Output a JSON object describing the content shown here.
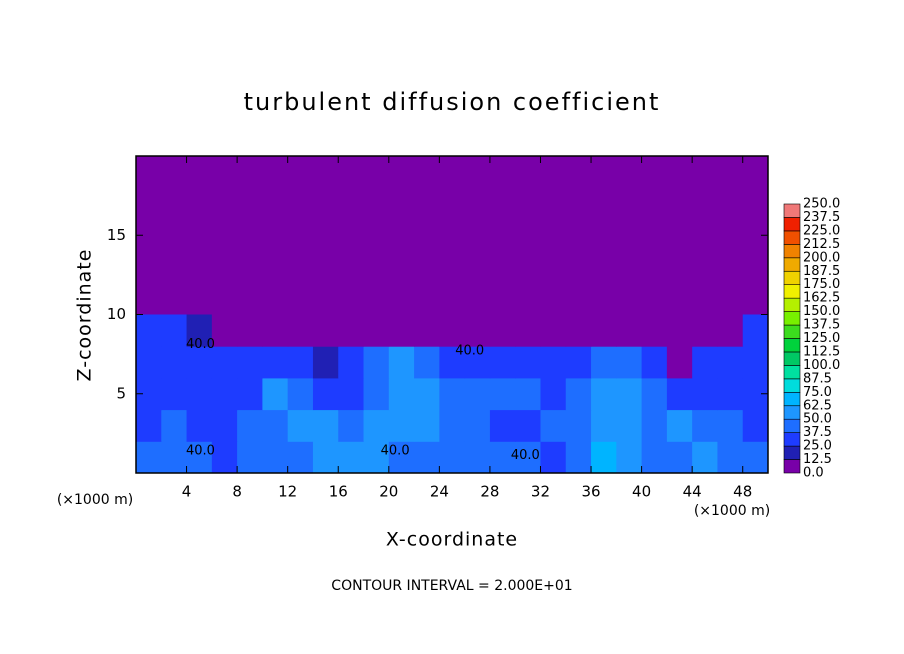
{
  "chart_data": {
    "type": "contour",
    "title": "turbulent diffusion coefficient",
    "xlabel": "X-coordinate",
    "ylabel": "Z-coordinate",
    "x_unit_label": "(×1000 m)",
    "y_unit_label": "(×1000 m)",
    "note": "CONTOUR INTERVAL = 2.000E+01",
    "xlim": [
      0,
      50
    ],
    "ylim": [
      0,
      20
    ],
    "xticks": [
      4,
      8,
      12,
      16,
      20,
      24,
      28,
      32,
      36,
      40,
      44,
      48
    ],
    "yticks": [
      5,
      10,
      15
    ],
    "x": [
      1,
      3,
      5,
      7,
      9,
      11,
      13,
      15,
      17,
      19,
      21,
      23,
      25,
      27,
      29,
      31,
      33,
      35,
      37,
      39,
      41,
      43,
      45,
      47,
      49
    ],
    "y": [
      1,
      3,
      5,
      7,
      9
    ],
    "z": [
      [
        40,
        45,
        40,
        35,
        45,
        40,
        40,
        55,
        60,
        55,
        45,
        40,
        45,
        40,
        40,
        40,
        35,
        40,
        65,
        60,
        45,
        40,
        50,
        45,
        40
      ],
      [
        35,
        40,
        35,
        30,
        40,
        45,
        50,
        55,
        45,
        50,
        55,
        60,
        45,
        40,
        35,
        35,
        40,
        45,
        60,
        55,
        40,
        55,
        45,
        40,
        35
      ],
      [
        35,
        35,
        30,
        30,
        35,
        50,
        45,
        35,
        30,
        40,
        55,
        50,
        45,
        40,
        40,
        40,
        35,
        40,
        55,
        50,
        40,
        30,
        30,
        35,
        30
      ],
      [
        35,
        35,
        35,
        30,
        30,
        35,
        35,
        20,
        30,
        45,
        50,
        40,
        35,
        35,
        35,
        30,
        30,
        25,
        45,
        40,
        35,
        5,
        30,
        35,
        30
      ],
      [
        30,
        25,
        20,
        5,
        0,
        0,
        0,
        0,
        0,
        0,
        0,
        0,
        0,
        0,
        0,
        0,
        0,
        0,
        0,
        0,
        0,
        0,
        0,
        0,
        25
      ]
    ],
    "contour_labels": [
      {
        "x": 5.1,
        "y": 8.1,
        "label": "40.0"
      },
      {
        "x": 26.4,
        "y": 7.7,
        "label": "40.0"
      },
      {
        "x": 5.1,
        "y": 1.4,
        "label": "40.0"
      },
      {
        "x": 20.5,
        "y": 1.4,
        "label": "40.0"
      },
      {
        "x": 30.8,
        "y": 1.1,
        "label": "40.0"
      }
    ],
    "colorbar": {
      "levels": [
        {
          "value": 0,
          "label": "0.0"
        },
        12.5,
        {
          "value": 25,
          "label": "25.0"
        },
        37.5,
        {
          "value": 50,
          "label": "50.0"
        },
        62.5,
        {
          "value": 75,
          "label": "75.0"
        },
        87.5,
        {
          "value": 100,
          "label": "100.0"
        },
        112.5,
        {
          "value": 125,
          "label": "125.0"
        },
        137.5,
        {
          "value": 150,
          "label": "150.0"
        },
        162.5,
        {
          "value": 175,
          "label": "175.0"
        },
        187.5,
        {
          "value": 200,
          "label": "200.0"
        },
        212.5,
        {
          "value": 225,
          "label": "225.0"
        },
        237.5,
        {
          "value": 250,
          "label": "250.0"
        }
      ],
      "colors": [
        "#7800a8",
        "#2020b4",
        "#1e3cff",
        "#1e6eff",
        "#1e96ff",
        "#00b4ff",
        "#00dcdc",
        "#00e0a0",
        "#00c864",
        "#00d23c",
        "#3cdc1e",
        "#78f000",
        "#b4f000",
        "#f0f000",
        "#f0d200",
        "#f0aa00",
        "#f08200",
        "#f05000",
        "#f02000",
        "#f07878"
      ]
    }
  }
}
